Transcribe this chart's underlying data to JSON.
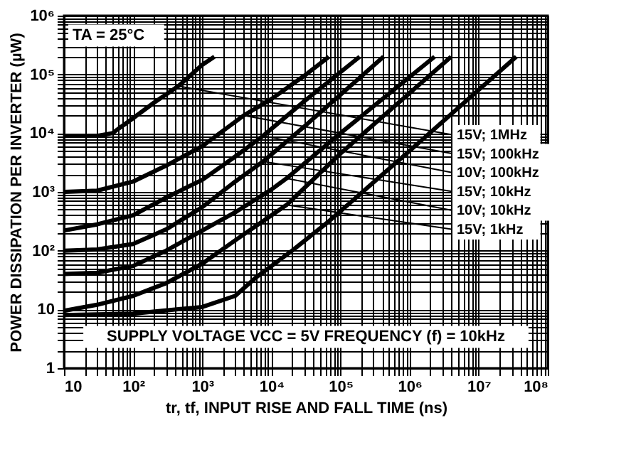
{
  "chart_data": {
    "type": "line",
    "xlabel": "tr, tf, INPUT RISE AND FALL TIME (ns)",
    "ylabel": "POWER DISSIPATION PER INVERTER (µW)",
    "log": "xy",
    "grid": true,
    "legend": false,
    "marker": "none",
    "line_style": "solid",
    "xlim": [
      10,
      100000000
    ],
    "ylim": [
      1,
      1000000
    ],
    "xticks": [
      10,
      {
        "value": 20,
        "label": null
      },
      {
        "value": 30,
        "label": null
      },
      {
        "value": 40,
        "label": null
      },
      {
        "value": 50,
        "label": null
      },
      {
        "value": 60,
        "label": null
      },
      {
        "value": 70,
        "label": null
      },
      {
        "value": 80,
        "label": null
      },
      {
        "value": 90,
        "label": null
      },
      {
        "value": 100,
        "label": "10²"
      },
      {
        "value": 200,
        "label": null
      },
      {
        "value": 300,
        "label": null
      },
      {
        "value": 400,
        "label": null
      },
      {
        "value": 500,
        "label": null
      },
      {
        "value": 600,
        "label": null
      },
      {
        "value": 700,
        "label": null
      },
      {
        "value": 800,
        "label": null
      },
      {
        "value": 900,
        "label": null
      },
      {
        "value": 1000,
        "label": "10³"
      },
      {
        "value": 2000,
        "label": null
      },
      {
        "value": 3000,
        "label": null
      },
      {
        "value": 4000,
        "label": null
      },
      {
        "value": 5000,
        "label": null
      },
      {
        "value": 6000,
        "label": null
      },
      {
        "value": 7000,
        "label": null
      },
      {
        "value": 8000,
        "label": null
      },
      {
        "value": 9000,
        "label": null
      },
      {
        "value": 10000,
        "label": "10⁴"
      },
      {
        "value": 20000,
        "label": null
      },
      {
        "value": 30000,
        "label": null
      },
      {
        "value": 40000,
        "label": null
      },
      {
        "value": 50000,
        "label": null
      },
      {
        "value": 60000,
        "label": null
      },
      {
        "value": 70000,
        "label": null
      },
      {
        "value": 80000,
        "label": null
      },
      {
        "value": 90000,
        "label": null
      },
      {
        "value": 100000,
        "label": "10⁵"
      },
      {
        "value": 200000,
        "label": null
      },
      {
        "value": 300000,
        "label": null
      },
      {
        "value": 400000,
        "label": null
      },
      {
        "value": 500000,
        "label": null
      },
      {
        "value": 600000,
        "label": null
      },
      {
        "value": 700000,
        "label": null
      },
      {
        "value": 800000,
        "label": null
      },
      {
        "value": 900000,
        "label": null
      },
      {
        "value": 1000000,
        "label": "10⁶"
      },
      {
        "value": 2000000,
        "label": null
      },
      {
        "value": 3000000,
        "label": null
      },
      {
        "value": 4000000,
        "label": null
      },
      {
        "value": 5000000,
        "label": null
      },
      {
        "value": 6000000,
        "label": null
      },
      {
        "value": 7000000,
        "label": null
      },
      {
        "value": 8000000,
        "label": null
      },
      {
        "value": 9000000,
        "label": null
      },
      {
        "value": 10000000,
        "label": "10⁷"
      },
      {
        "value": 20000000,
        "label": null
      },
      {
        "value": 30000000,
        "label": null
      },
      {
        "value": 40000000,
        "label": null
      },
      {
        "value": 50000000,
        "label": null
      },
      {
        "value": 60000000,
        "label": null
      },
      {
        "value": 70000000,
        "label": null
      },
      {
        "value": 80000000,
        "label": null
      },
      {
        "value": 90000000,
        "label": null
      },
      {
        "value": 100000000,
        "label": "10⁸"
      }
    ],
    "yticks": [
      1,
      {
        "value": 2,
        "label": null
      },
      {
        "value": 3,
        "label": null
      },
      {
        "value": 4,
        "label": null
      },
      {
        "value": 5,
        "label": null
      },
      {
        "value": 6,
        "label": null
      },
      {
        "value": 7,
        "label": null
      },
      {
        "value": 8,
        "label": null
      },
      {
        "value": 9,
        "label": null
      },
      10,
      {
        "value": 20,
        "label": null
      },
      {
        "value": 30,
        "label": null
      },
      {
        "value": 40,
        "label": null
      },
      {
        "value": 50,
        "label": null
      },
      {
        "value": 60,
        "label": null
      },
      {
        "value": 70,
        "label": null
      },
      {
        "value": 80,
        "label": null
      },
      {
        "value": 90,
        "label": null
      },
      {
        "value": 100,
        "label": "10²"
      },
      {
        "value": 200,
        "label": null
      },
      {
        "value": 300,
        "label": null
      },
      {
        "value": 400,
        "label": null
      },
      {
        "value": 500,
        "label": null
      },
      {
        "value": 600,
        "label": null
      },
      {
        "value": 700,
        "label": null
      },
      {
        "value": 800,
        "label": null
      },
      {
        "value": 900,
        "label": null
      },
      {
        "value": 1000,
        "label": "10³"
      },
      {
        "value": 2000,
        "label": null
      },
      {
        "value": 3000,
        "label": null
      },
      {
        "value": 4000,
        "label": null
      },
      {
        "value": 5000,
        "label": null
      },
      {
        "value": 6000,
        "label": null
      },
      {
        "value": 7000,
        "label": null
      },
      {
        "value": 8000,
        "label": null
      },
      {
        "value": 9000,
        "label": null
      },
      {
        "value": 10000,
        "label": "10⁴"
      },
      {
        "value": 20000,
        "label": null
      },
      {
        "value": 30000,
        "label": null
      },
      {
        "value": 40000,
        "label": null
      },
      {
        "value": 50000,
        "label": null
      },
      {
        "value": 60000,
        "label": null
      },
      {
        "value": 70000,
        "label": null
      },
      {
        "value": 80000,
        "label": null
      },
      {
        "value": 90000,
        "label": null
      },
      {
        "value": 100000,
        "label": "10⁵"
      },
      {
        "value": 200000,
        "label": null
      },
      {
        "value": 300000,
        "label": null
      },
      {
        "value": 400000,
        "label": null
      },
      {
        "value": 500000,
        "label": null
      },
      {
        "value": 600000,
        "label": null
      },
      {
        "value": 700000,
        "label": null
      },
      {
        "value": 800000,
        "label": null
      },
      {
        "value": 900000,
        "label": null
      },
      {
        "value": 1000000,
        "label": "10⁶"
      }
    ],
    "series": [
      {
        "color": "#000000",
        "x": [
          10,
          30,
          50,
          100,
          200,
          450,
          1000,
          1500
        ],
        "values": [
          9000,
          9000,
          10000,
          18000,
          33000,
          63000,
          145000,
          200000
        ]
      },
      {
        "color": "#000000",
        "x": [
          10,
          30,
          100,
          300,
          1000,
          4000,
          10000,
          30000,
          68000
        ],
        "values": [
          1000,
          1050,
          1500,
          2800,
          6000,
          20000,
          38000,
          95000,
          200000
        ]
      },
      {
        "color": "#000000",
        "x": [
          10,
          30,
          100,
          300,
          1000,
          3000,
          7600,
          30000,
          190000
        ],
        "values": [
          220,
          280,
          400,
          800,
          1600,
          4000,
          9000,
          35000,
          200000
        ]
      },
      {
        "color": "#000000",
        "x": [
          10,
          30,
          100,
          300,
          1000,
          3000,
          7600,
          30000,
          100000,
          420000
        ],
        "values": [
          100,
          105,
          130,
          230,
          550,
          1500,
          3300,
          13000,
          45000,
          200000
        ]
      },
      {
        "color": "#000000",
        "x": [
          10,
          30,
          100,
          300,
          1000,
          3000,
          10000,
          16600,
          100000,
          2300000
        ],
        "values": [
          40,
          42,
          55,
          100,
          220,
          450,
          1100,
          1700,
          10000,
          200000
        ]
      },
      {
        "color": "#000000",
        "x": [
          10,
          30,
          100,
          300,
          1000,
          3000,
          16600,
          100000,
          4000000
        ],
        "values": [
          9.5,
          12,
          17,
          28,
          60,
          150,
          600,
          4500,
          200000
        ]
      },
      {
        "color": "#000000",
        "x": [
          10,
          100,
          1000,
          3000,
          6000,
          20000,
          68000,
          1000000,
          35000000
        ],
        "values": [
          8,
          8.5,
          11,
          17,
          35,
          100,
          316,
          5000,
          200000
        ]
      }
    ],
    "annotations": [
      "TA = 25°C",
      "SUPPLY VOLTAGE VCC = 5V FREQUENCY (f) = 10kHz",
      {
        "text": "15V; 1MHz",
        "x": 450,
        "y": 63000
      },
      {
        "text": "15V; 100kHz",
        "x": 4000,
        "y": 20000
      },
      {
        "text": "10V; 100kHz",
        "x": 7600,
        "y": 9000
      },
      {
        "text": "15V; 10kHz",
        "x": 7600,
        "y": 3300
      },
      {
        "text": "10V; 10kHz",
        "x": 16600,
        "y": 1700
      },
      {
        "text": "15V; 1kHz",
        "x": 16600,
        "y": 600
      }
    ]
  }
}
